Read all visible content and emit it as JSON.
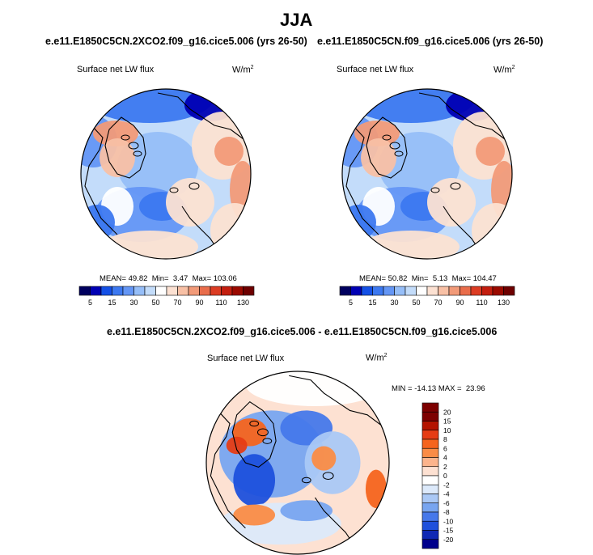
{
  "page_title": "JJA",
  "chart_data": [
    {
      "type": "heatmap",
      "projection": "polar stereographic (north pole)",
      "case": "e.e11.E1850C5CN.2XCO2.f09_g16.cice5.006 (yrs 26-50)",
      "variable": "Surface net LW flux",
      "units": "W/m",
      "units_exponent": "2",
      "stats": {
        "mean_label": "MEAN=",
        "mean": "49.82",
        "min_label": "Min=",
        "min": "3.47",
        "max_label": "Max=",
        "max": "103.06"
      },
      "colorbar": {
        "orientation": "horizontal",
        "levels": [
          5,
          10,
          15,
          20,
          30,
          40,
          50,
          60,
          70,
          80,
          90,
          100,
          110,
          120,
          130
        ],
        "tick_labels": [
          "5",
          "15",
          "30",
          "50",
          "70",
          "90",
          "110",
          "130"
        ]
      }
    },
    {
      "type": "heatmap",
      "projection": "polar stereographic (north pole)",
      "case": "e.e11.E1850C5CN.f09_g16.cice5.006 (yrs 26-50)",
      "variable": "Surface net LW flux",
      "units": "W/m",
      "units_exponent": "2",
      "stats": {
        "mean_label": "MEAN=",
        "mean": "50.82",
        "min_label": "Min=",
        "min": "5.13",
        "max_label": "Max=",
        "max": "104.47"
      },
      "colorbar": {
        "orientation": "horizontal",
        "levels": [
          5,
          10,
          15,
          20,
          30,
          40,
          50,
          60,
          70,
          80,
          90,
          100,
          110,
          120,
          130
        ],
        "tick_labels": [
          "5",
          "15",
          "30",
          "50",
          "70",
          "90",
          "110",
          "130"
        ]
      }
    },
    {
      "type": "heatmap",
      "projection": "polar stereographic (north pole)",
      "case": "e.e11.E1850C5CN.2XCO2.f09_g16.cice5.006 - e.e11.E1850C5CN.f09_g16.cice5.006",
      "variable": "Surface net LW flux",
      "units": "W/m",
      "units_exponent": "2",
      "stats": {
        "min_label": "MIN =",
        "min": "-14.13",
        "max_label": "MAX =",
        "max": "23.96"
      },
      "colorbar": {
        "orientation": "vertical",
        "levels": [
          20,
          15,
          10,
          8,
          6,
          4,
          2,
          0,
          -2,
          -4,
          -6,
          -8,
          -10,
          -15,
          -20
        ],
        "tick_labels": [
          "20",
          "15",
          "10",
          "8",
          "6",
          "4",
          "2",
          "0",
          "-2",
          "-4",
          "-6",
          "-8",
          "-10",
          "-15",
          "-20"
        ]
      }
    }
  ],
  "colors": {
    "abs_scale": [
      "#00005f",
      "#0000b4",
      "#1450e6",
      "#3c78f0",
      "#6496f5",
      "#96bef8",
      "#c3dcfa",
      "#ffffff",
      "#fce1d2",
      "#f8c0a5",
      "#f29a78",
      "#e96d4b",
      "#dc3c23",
      "#c31e0f",
      "#9b0a00",
      "#6e0000"
    ],
    "diff_scale": [
      "#7d0000",
      "#b41400",
      "#e63c14",
      "#f5641e",
      "#fa8c46",
      "#fcb48c",
      "#fde1d2",
      "#ffffff",
      "#dce9fa",
      "#aac8f5",
      "#78a5f0",
      "#4678ea",
      "#1e50dc",
      "#0f28b4",
      "#00008c"
    ]
  }
}
